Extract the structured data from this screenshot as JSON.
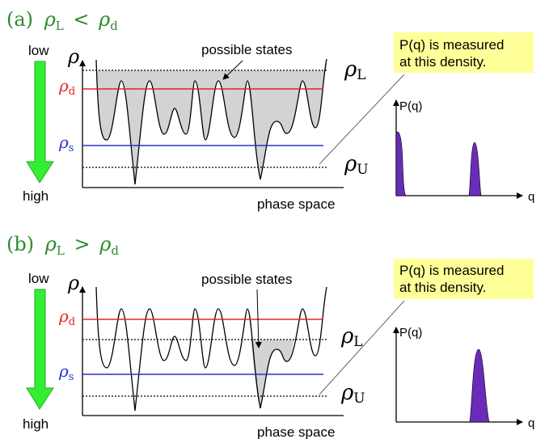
{
  "panel_a": {
    "label_prefix": "(a)",
    "cond_lhs": "ρ",
    "cond_lhs_sub": "L",
    "cond_op": "<",
    "cond_rhs": "ρ",
    "cond_rhs_sub": "d",
    "arrow_top": "low",
    "arrow_bottom": "high",
    "axis_y": "ρ",
    "axis_x": "phase space",
    "rho_d": "ρ",
    "rho_d_sub": "d",
    "rho_s": "ρ",
    "rho_s_sub": "s",
    "rho_L": "ρ",
    "rho_L_sub": "L",
    "rho_U": "ρ",
    "rho_U_sub": "U",
    "states_label": "possible states",
    "note_line1": "P(q) is measured",
    "note_line2": "at this density.",
    "pq_ylabel": "P(q)",
    "pq_xlabel": "q"
  },
  "panel_b": {
    "label_prefix": "(b)",
    "cond_lhs": "ρ",
    "cond_lhs_sub": "L",
    "cond_op": ">",
    "cond_rhs": "ρ",
    "cond_rhs_sub": "d",
    "arrow_top": "low",
    "arrow_bottom": "high",
    "axis_y": "ρ",
    "axis_x": "phase space",
    "rho_d": "ρ",
    "rho_d_sub": "d",
    "rho_s": "ρ",
    "rho_s_sub": "s",
    "rho_L": "ρ",
    "rho_L_sub": "L",
    "rho_U": "ρ",
    "rho_U_sub": "U",
    "states_label": "possible states",
    "note_line1": "P(q) is measured",
    "note_line2": "at this density.",
    "pq_ylabel": "P(q)",
    "pq_xlabel": "q"
  },
  "colors": {
    "title": "#2e8b2e",
    "rho_d": "#e8231e",
    "rho_s": "#2832c8",
    "arrow": "#33ee33",
    "fill": "#d3d3d3",
    "note_bg": "#ffff99",
    "peak": "#6a2cb8"
  }
}
